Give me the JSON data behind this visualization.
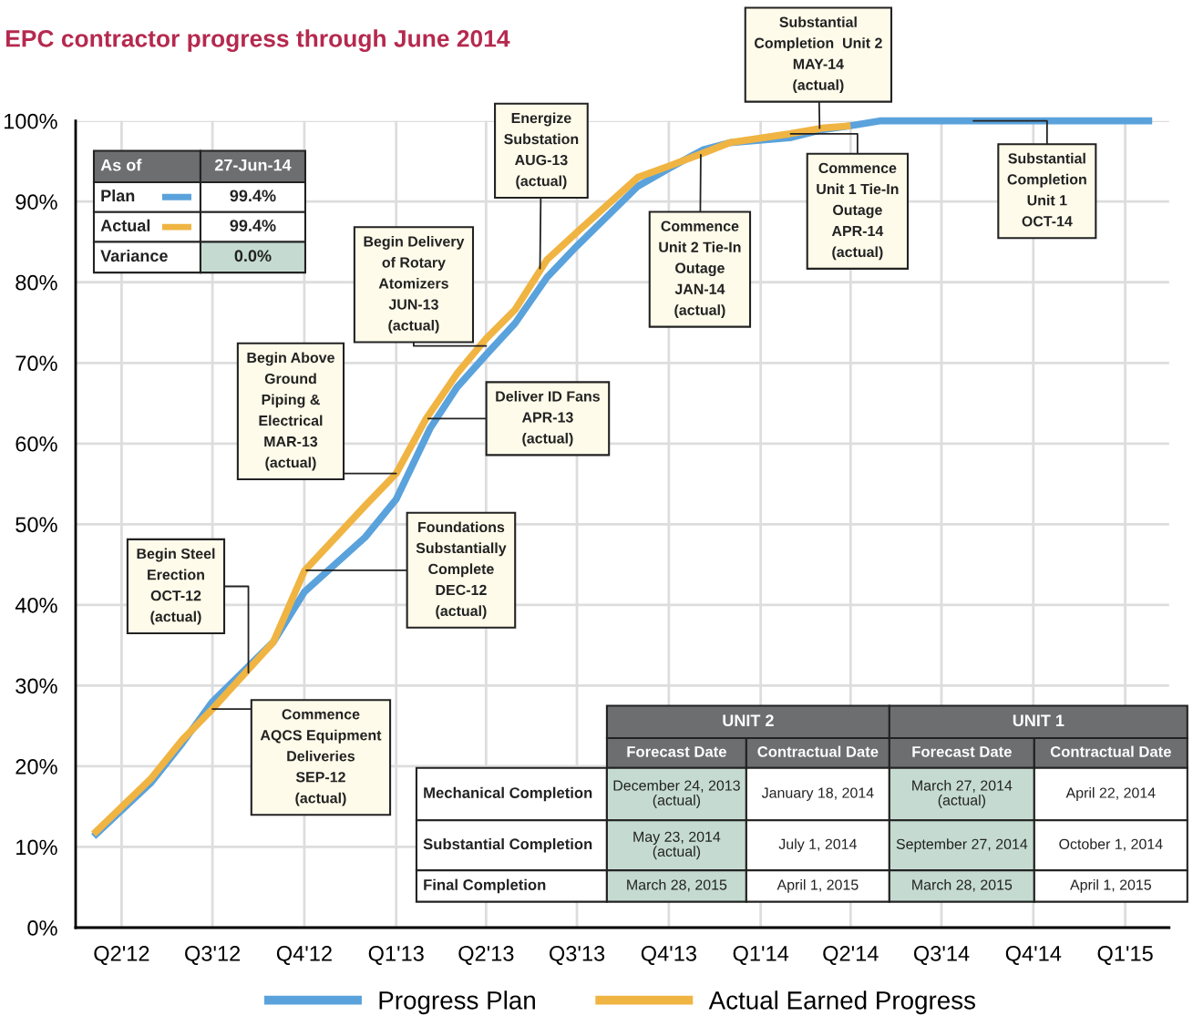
{
  "chart_data": {
    "type": "line",
    "title": "EPC contractor progress through June 2014",
    "xlim": [
      "2012-02-15",
      "2015-02-14"
    ],
    "xticks": [
      {
        "value": "2012-04-01",
        "label": "Q2'12"
      },
      {
        "value": "2012-07-01",
        "label": "Q3'12"
      },
      {
        "value": "2012-10-01",
        "label": "Q4'12"
      },
      {
        "value": "2013-01-01",
        "label": "Q1'13"
      },
      {
        "value": "2013-04-01",
        "label": "Q2'13"
      },
      {
        "value": "2013-07-01",
        "label": "Q3'13"
      },
      {
        "value": "2013-10-01",
        "label": "Q4'13"
      },
      {
        "value": "2014-01-01",
        "label": "Q1'14"
      },
      {
        "value": "2014-04-01",
        "label": "Q2'14"
      },
      {
        "value": "2014-07-01",
        "label": "Q3'14"
      },
      {
        "value": "2014-10-01",
        "label": "Q4'14"
      },
      {
        "value": "2015-01-01",
        "label": "Q1'15"
      }
    ],
    "ylim": [
      0,
      100
    ],
    "yticks": [
      {
        "value": 0,
        "label": "0%"
      },
      {
        "value": 10,
        "label": "10%"
      },
      {
        "value": 20,
        "label": "20%"
      },
      {
        "value": 30,
        "label": "30%"
      },
      {
        "value": 40,
        "label": "40%"
      },
      {
        "value": 50,
        "label": "50%"
      },
      {
        "value": 60,
        "label": "60%"
      },
      {
        "value": 70,
        "label": "70%"
      },
      {
        "value": 80,
        "label": "80%"
      },
      {
        "value": 90,
        "label": "90%"
      },
      {
        "value": 100,
        "label": "100%"
      }
    ],
    "grid": true,
    "legend": "bottom",
    "marker": "none",
    "line_style": "solid",
    "series": [
      {
        "name": "Progress Plan",
        "color": "#5aa2dc",
        "x": [
          "2012-03-04",
          "2012-04-30",
          "2012-06-01",
          "2012-07-01",
          "2012-08-31",
          "2012-10-01",
          "2012-12-01",
          "2013-01-01",
          "2013-02-04",
          "2013-03-03",
          "2013-04-01",
          "2013-04-30",
          "2013-06-01",
          "2013-07-01",
          "2013-08-31",
          "2013-10-01",
          "2013-11-04",
          "2013-12-01",
          "2014-01-30",
          "2014-03-03",
          "2014-04-01",
          "2014-04-30",
          "2015-01-28"
        ],
        "values": [
          11.3,
          17.9,
          22.9,
          28.0,
          35.4,
          41.6,
          48.4,
          53.1,
          61.9,
          67.0,
          71.0,
          74.9,
          80.6,
          84.5,
          91.9,
          94.1,
          96.4,
          97.3,
          97.9,
          98.9,
          99.4,
          100,
          100
        ]
      },
      {
        "name": "Actual Earned Progress",
        "color": "#f0b443",
        "x": [
          "2012-03-04",
          "2012-04-30",
          "2012-06-01",
          "2012-07-01",
          "2012-08-31",
          "2012-10-01",
          "2012-12-01",
          "2013-01-01",
          "2013-01-31",
          "2013-03-03",
          "2013-04-01",
          "2013-04-30",
          "2013-06-01",
          "2013-07-01",
          "2013-08-31",
          "2013-10-01",
          "2013-11-04",
          "2013-12-01",
          "2014-01-30",
          "2014-03-03",
          "2014-04-01"
        ],
        "values": [
          11.6,
          18.4,
          23.3,
          27.1,
          35.4,
          44.2,
          52.3,
          56.3,
          63.1,
          68.7,
          73.0,
          76.6,
          82.8,
          86.2,
          93.0,
          94.4,
          96.0,
          97.3,
          98.4,
          99.1,
          99.4
        ]
      }
    ],
    "annotations": [
      {
        "text": "Begin Steel\nErection\nOCT-12\n(actual)",
        "x": "2012-08-06",
        "y": 31.6
      },
      {
        "text": "Commence\nAQCS Equipment\nDeliveries\nSEP-12\n(actual)",
        "x": "2012-07-01",
        "y": 27.1
      },
      {
        "text": "Foundations\nSubstantially\nComplete\nDEC-12\n(actual)",
        "x": "2012-10-03",
        "y": 44.3
      },
      {
        "text": "Begin Above\nGround\nPiping &\nElectrical\nMAR-13\n(actual)",
        "x": "2013-01-01",
        "y": 56.3
      },
      {
        "text": "Deliver ID Fans\nAPR-13\n(actual)",
        "x": "2013-02-02",
        "y": 63.1
      },
      {
        "text": "Begin Delivery\nof Rotary\nAtomizers\nJUN-13\n(actual)",
        "x": "2013-04-01",
        "y": 72.1
      },
      {
        "text": "Energize\nSubstation\nAUG-13\n(actual)",
        "x": "2013-05-25",
        "y": 81.7
      },
      {
        "text": "Commence\nUnit 2 Tie-In\nOutage\nJAN-14\n(actual)",
        "x": "2013-11-02",
        "y": 95.8
      },
      {
        "text": "Commence\nUnit 1 Tie-In\nOutage\nAPR-14\n(actual)",
        "x": "2014-01-31",
        "y": 98.4
      },
      {
        "text": "Substantial\nCompletion  Unit 2\nMAY-14\n(actual)",
        "x": "2014-03-01",
        "y": 99.1
      },
      {
        "text": "Substantial\nCompletion\nUnit 1\nOCT-14",
        "x": "2014-08-02",
        "y": 100
      },
      "As of",
      "27-Jun-14",
      "Plan",
      "99.4%",
      "Actual",
      "99.4%",
      "Variance",
      "0.0%",
      "UNIT 2",
      "UNIT 1",
      "Forecast Date",
      "Contractual Date",
      "Forecast Date",
      "Contractual Date",
      "Mechanical Completion",
      "December 24, 2013\n(actual)",
      "January 18, 2014",
      "March 27, 2014\n(actual)",
      "April 22, 2014",
      "Substantial Completion",
      "May 23, 2014\n(actual)",
      "July 1, 2014",
      "September 27, 2014",
      "October 1, 2014",
      "Final Completion",
      "March 28, 2015",
      "April 1, 2015",
      "March 28, 2015",
      "April 1, 2015"
    ]
  }
}
